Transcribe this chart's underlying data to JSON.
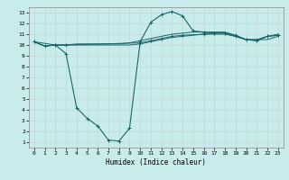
{
  "xlabel": "Humidex (Indice chaleur)",
  "background_color": "#c8ecec",
  "grid_color": "#c0d8d8",
  "line_color": "#1a6666",
  "xlim": [
    -0.5,
    23.5
  ],
  "ylim": [
    0.5,
    13.5
  ],
  "xticks": [
    0,
    1,
    2,
    3,
    4,
    5,
    6,
    7,
    8,
    9,
    10,
    11,
    12,
    13,
    14,
    15,
    16,
    17,
    18,
    19,
    20,
    21,
    22,
    23
  ],
  "yticks": [
    1,
    2,
    3,
    4,
    5,
    6,
    7,
    8,
    9,
    10,
    11,
    12,
    13
  ],
  "line1_x": [
    0,
    1,
    2,
    3,
    4,
    5,
    6,
    7,
    8,
    9,
    10,
    11,
    12,
    13,
    14,
    15,
    16,
    17,
    18,
    19,
    20,
    21,
    22,
    23
  ],
  "line1_y": [
    10.3,
    9.9,
    10.0,
    10.0,
    10.0,
    10.0,
    10.0,
    10.0,
    10.0,
    10.0,
    10.1,
    10.3,
    10.5,
    10.7,
    10.8,
    10.9,
    11.0,
    11.0,
    11.0,
    10.8,
    10.5,
    10.5,
    10.5,
    10.8
  ],
  "line2_x": [
    0,
    1,
    2,
    3,
    4,
    5,
    6,
    7,
    8,
    9,
    10,
    11,
    12,
    13,
    14,
    15,
    16,
    17,
    18,
    19,
    20,
    21,
    22,
    23
  ],
  "line2_y": [
    10.3,
    9.9,
    10.0,
    9.2,
    4.2,
    3.2,
    2.5,
    1.2,
    1.1,
    2.3,
    10.3,
    12.1,
    12.8,
    13.1,
    12.7,
    11.3,
    11.2,
    11.1,
    11.1,
    10.8,
    10.5,
    10.4,
    10.8,
    10.9
  ],
  "line3_x": [
    0,
    2,
    3,
    10,
    11,
    12,
    13,
    14,
    16,
    17,
    18,
    19,
    20,
    21,
    22,
    23
  ],
  "line3_y": [
    10.3,
    10.0,
    10.0,
    10.2,
    10.4,
    10.6,
    10.8,
    10.9,
    11.0,
    11.1,
    11.1,
    10.9,
    10.5,
    10.4,
    10.8,
    10.9
  ],
  "line4_x": [
    0,
    1,
    2,
    3,
    4,
    5,
    6,
    7,
    8,
    9,
    10,
    11,
    12,
    13,
    14,
    15,
    16,
    17,
    18,
    19,
    20,
    21,
    22,
    23
  ],
  "line4_y": [
    10.3,
    9.9,
    10.0,
    10.0,
    10.1,
    10.1,
    10.1,
    10.1,
    10.1,
    10.2,
    10.4,
    10.6,
    10.8,
    11.0,
    11.1,
    11.2,
    11.2,
    11.2,
    11.2,
    10.9,
    10.5,
    10.5,
    10.8,
    11.0
  ]
}
